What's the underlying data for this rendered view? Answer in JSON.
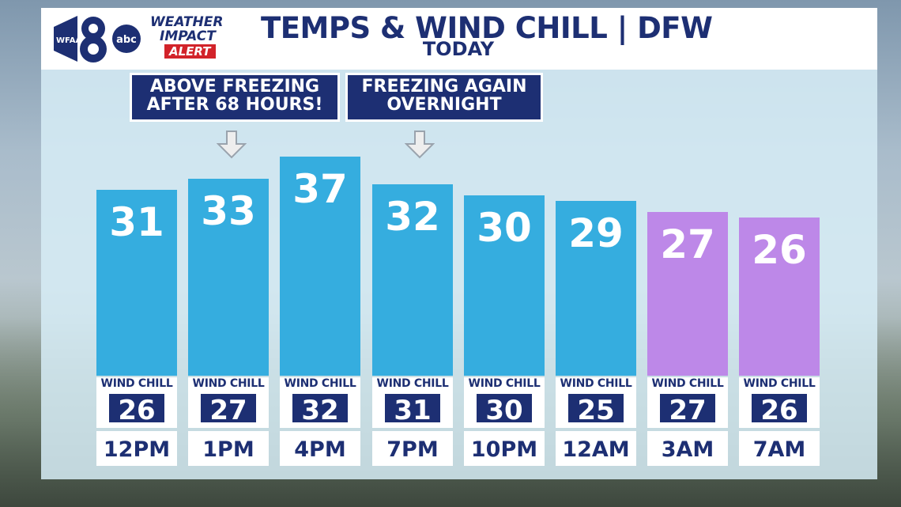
{
  "header": {
    "title": "TEMPS & WIND CHILL | DFW",
    "subtitle": "TODAY",
    "station_logo": {
      "call_letters": "WFAA",
      "channel": "8",
      "network": "abc"
    },
    "weather_logo": {
      "line1": "WEATHER",
      "line2": "IMPACT",
      "line3": "ALERT"
    }
  },
  "callouts": [
    {
      "line1": "ABOVE FREEZING",
      "line2": "AFTER 68 HOURS!"
    },
    {
      "line1": "FREEZING AGAIN",
      "line2": "OVERNIGHT"
    }
  ],
  "wind_chill_label": "WIND CHILL",
  "colors": {
    "navy": "#1d2f73",
    "above_freezing_blue": "#35addf",
    "below_freezing_purple": "#bd88e8",
    "alert_red": "#d2232a"
  },
  "chart_data": {
    "type": "bar",
    "categories": [
      "12PM",
      "1PM",
      "4PM",
      "7PM",
      "10PM",
      "12AM",
      "3AM",
      "7AM"
    ],
    "series": [
      {
        "name": "Temps",
        "values": [
          31,
          33,
          37,
          32,
          30,
          29,
          27,
          26
        ]
      },
      {
        "name": "WIND CHILL",
        "values": [
          26,
          27,
          32,
          31,
          30,
          25,
          27,
          26
        ]
      }
    ],
    "bar_colors": [
      "blue",
      "blue",
      "blue",
      "blue",
      "blue",
      "blue",
      "purple",
      "purple"
    ],
    "title": "TEMPS & WIND CHILL | DFW",
    "subtitle": "TODAY"
  }
}
